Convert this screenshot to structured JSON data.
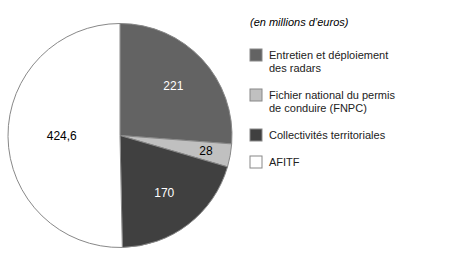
{
  "chart_data": {
    "type": "pie",
    "subtitle": "(en millions d’euros)",
    "categories": [
      "Entretien et déploiement\ndes radars",
      "Fichier national du permis\nde conduire (FNPC)",
      "Collectivités territoriales",
      "AFITF"
    ],
    "values": [
      221,
      28,
      170,
      424.6
    ],
    "value_labels": [
      "221",
      "28",
      "170",
      "424,6"
    ],
    "colors": [
      "#636363",
      "#c0c0c0",
      "#404040",
      "#ffffff"
    ],
    "data_labels": true,
    "legend": "right"
  }
}
